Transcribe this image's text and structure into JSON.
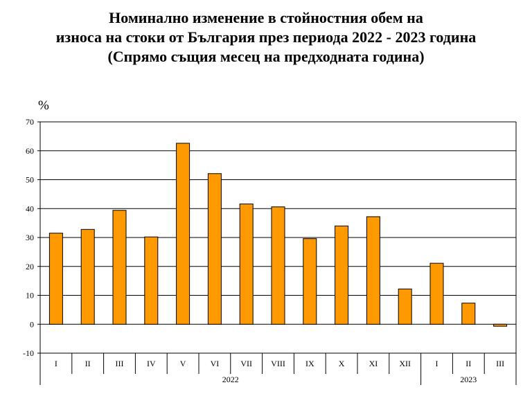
{
  "chart_data": {
    "type": "bar",
    "title_lines": [
      "Номинално изменение в стойностния обем на",
      "износа на стоки от България през периода 2022 - 2023 година",
      "(Спрямо същия месец на предходната година)"
    ],
    "ylabel": "%",
    "ylim": [
      -10,
      70
    ],
    "yticks": [
      "70",
      "60",
      "50",
      "40",
      "30",
      "20",
      "10",
      "0",
      "-10"
    ],
    "grid": true,
    "bar_color": "#FF9900",
    "categories": [
      "I",
      "II",
      "III",
      "IV",
      "V",
      "VI",
      "VII",
      "VIII",
      "IX",
      "X",
      "XI",
      "XII",
      "I",
      "II",
      "III"
    ],
    "values": [
      31.5,
      32.8,
      39.4,
      30.2,
      62.6,
      52.1,
      41.6,
      40.6,
      29.6,
      34.0,
      37.2,
      12.2,
      21.1,
      7.3,
      -0.7
    ],
    "groups": [
      {
        "label": "2022",
        "count": 12
      },
      {
        "label": "2023",
        "count": 3
      }
    ]
  }
}
